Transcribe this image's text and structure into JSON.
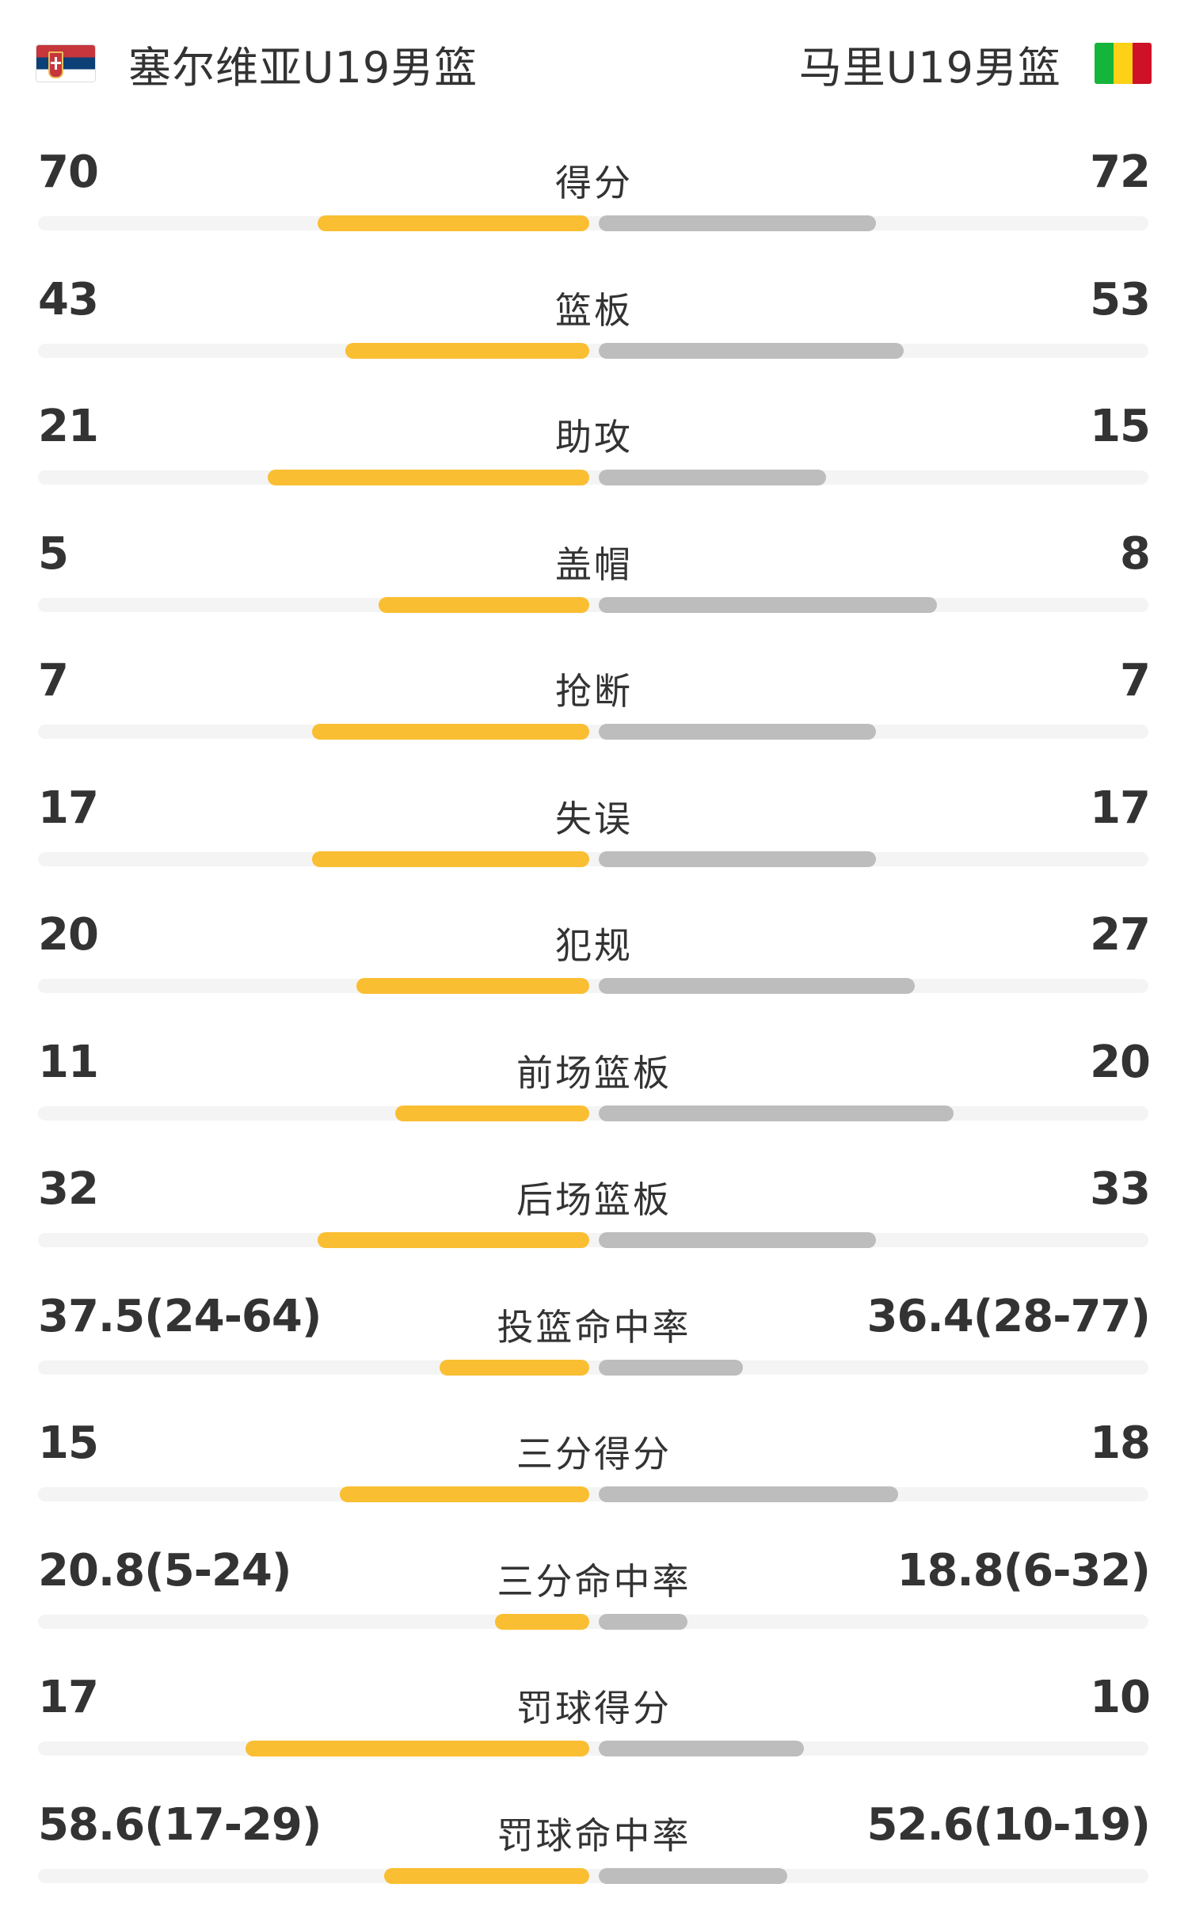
{
  "home": {
    "name": "塞尔维亚U19男篮",
    "flag": "serbia-flag",
    "bar_color": "#fabe32"
  },
  "away": {
    "name": "马里U19男篮",
    "flag": "mali-flag",
    "bar_color": "#bdbdbd"
  },
  "stats": [
    {
      "label": "得分",
      "home": "70",
      "away": "72",
      "home_ratio": 0.49,
      "away_ratio": 0.5
    },
    {
      "label": "篮板",
      "home": "43",
      "away": "53",
      "home_ratio": 0.44,
      "away_ratio": 0.55
    },
    {
      "label": "助攻",
      "home": "21",
      "away": "15",
      "home_ratio": 0.58,
      "away_ratio": 0.41
    },
    {
      "label": "盖帽",
      "home": "5",
      "away": "8",
      "home_ratio": 0.38,
      "away_ratio": 0.61
    },
    {
      "label": "抢断",
      "home": "7",
      "away": "7",
      "home_ratio": 0.5,
      "away_ratio": 0.5
    },
    {
      "label": "失误",
      "home": "17",
      "away": "17",
      "home_ratio": 0.5,
      "away_ratio": 0.5
    },
    {
      "label": "犯规",
      "home": "20",
      "away": "27",
      "home_ratio": 0.42,
      "away_ratio": 0.57
    },
    {
      "label": "前场篮板",
      "home": "11",
      "away": "20",
      "home_ratio": 0.35,
      "away_ratio": 0.64
    },
    {
      "label": "后场篮板",
      "home": "32",
      "away": "33",
      "home_ratio": 0.49,
      "away_ratio": 0.5
    },
    {
      "label": "投篮命中率",
      "home": "37.5(24-64)",
      "away": "36.4(28-77)",
      "home_ratio": 0.27,
      "away_ratio": 0.26
    },
    {
      "label": "三分得分",
      "home": "15",
      "away": "18",
      "home_ratio": 0.45,
      "away_ratio": 0.54
    },
    {
      "label": "三分命中率",
      "home": "20.8(5-24)",
      "away": "18.8(6-32)",
      "home_ratio": 0.17,
      "away_ratio": 0.16
    },
    {
      "label": "罚球得分",
      "home": "17",
      "away": "10",
      "home_ratio": 0.62,
      "away_ratio": 0.37
    },
    {
      "label": "罚球命中率",
      "home": "58.6(17-29)",
      "away": "52.6(10-19)",
      "home_ratio": 0.37,
      "away_ratio": 0.34
    }
  ]
}
